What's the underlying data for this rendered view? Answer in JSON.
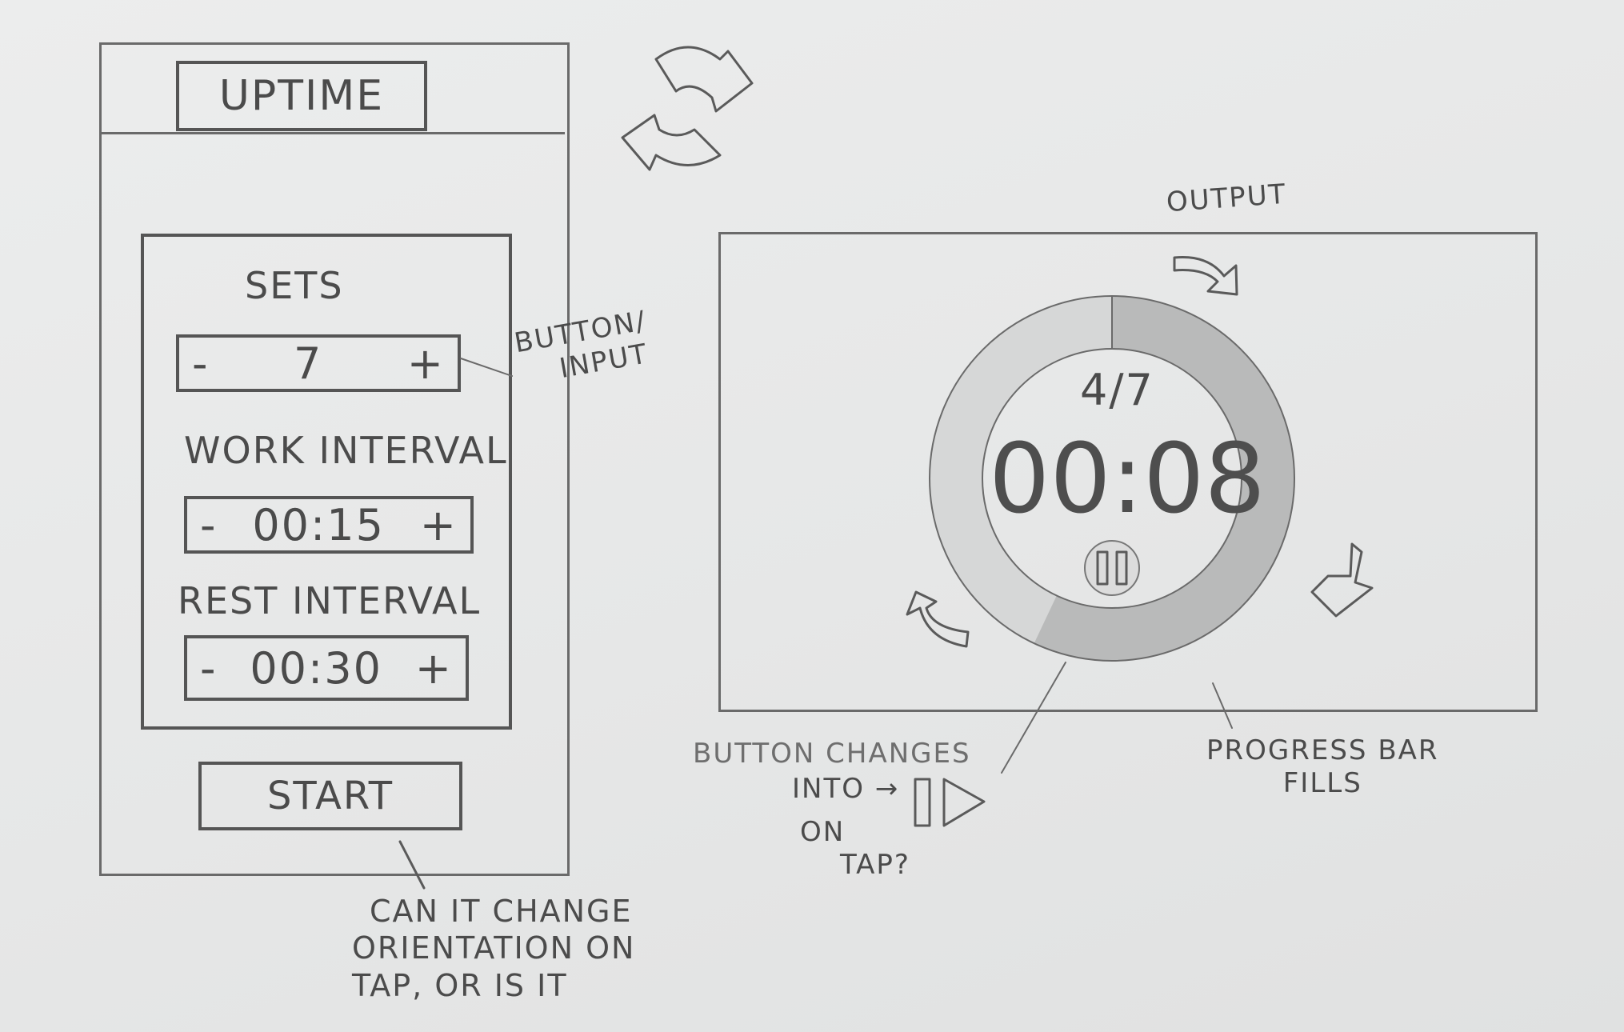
{
  "setup_screen": {
    "title": "UPTIME",
    "sets": {
      "label": "SETS",
      "minus": "-",
      "value": "7",
      "plus": "+"
    },
    "work_interval": {
      "label": "WORK INTERVAL",
      "minus": "-",
      "value": "00:15",
      "plus": "+"
    },
    "rest_interval": {
      "label": "REST INTERVAL",
      "minus": "-",
      "value": "00:30",
      "plus": "+"
    },
    "start_label": "START"
  },
  "timer_screen": {
    "set_progress": "4/7",
    "time": "00:08",
    "progress_fill": 0.57,
    "pause_icon": "pause-icon"
  },
  "annotations": {
    "button_input": [
      "BUTTON/",
      "INPUT"
    ],
    "output": "OUTPUT",
    "button_changes": "BUTTON CHANGES",
    "into": "INTO →",
    "on_tap": [
      "ON",
      "TAP?"
    ],
    "progress_bar": [
      "PROGRESS BAR",
      "FILLS"
    ],
    "orientation": [
      "CAN IT CHANGE",
      "ORIENTATION ON",
      "TAP, OR IS IT"
    ]
  },
  "icons": [
    "rotate-arrows-icon",
    "pause-icon",
    "play-icon",
    "curved-arrow-icon"
  ],
  "colors": {
    "paper": "#e8e9e9",
    "ink": "#555555",
    "progress": "#b8b8b8"
  }
}
